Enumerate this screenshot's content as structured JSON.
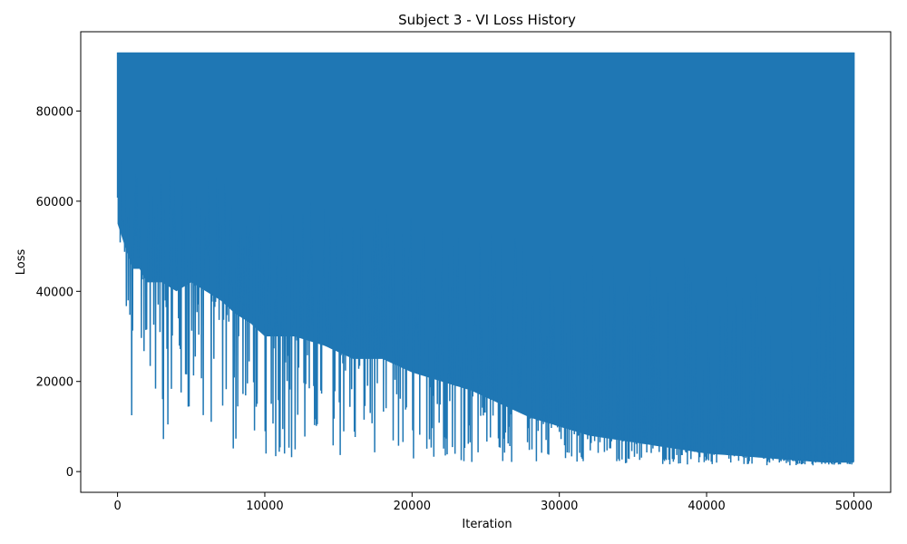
{
  "chart_data": {
    "type": "line",
    "title": "Subject 3 - VI Loss History",
    "xlabel": "Iteration",
    "ylabel": "Loss",
    "xlim": [
      -2500,
      52500
    ],
    "ylim": [
      -4600,
      97600
    ],
    "x_ticks": [
      0,
      10000,
      20000,
      30000,
      40000,
      50000
    ],
    "x_tick_labels": [
      "0",
      "10000",
      "20000",
      "30000",
      "40000",
      "50000"
    ],
    "y_ticks": [
      0,
      20000,
      40000,
      60000,
      80000
    ],
    "y_tick_labels": [
      "0",
      "20000",
      "40000",
      "60000",
      "80000"
    ],
    "grid": false,
    "legend": "none",
    "series": [
      {
        "color": "#1f77b4",
        "upper_envelope": 93000,
        "x": [
          0,
          500,
          1000,
          1500,
          2000,
          3000,
          4000,
          5000,
          6000,
          7000,
          8000,
          9000,
          10000,
          12000,
          14000,
          16000,
          18000,
          20000,
          22000,
          24000,
          26000,
          28000,
          30000,
          32000,
          34000,
          36000,
          38000,
          40000,
          42000,
          44000,
          46000,
          48000,
          50000
        ],
        "y_low": [
          14800,
          41500,
          5500,
          5000,
          23500,
          3000,
          11500,
          13500,
          5200,
          8500,
          3500,
          10000,
          2500,
          2800,
          2600,
          2500,
          1500,
          2000,
          1800,
          2000,
          1800,
          2200,
          2000,
          2000,
          1800,
          1600,
          1600,
          1500,
          1500,
          1400,
          1400,
          1300,
          1600
        ],
        "y_lower_band": [
          55000,
          50000,
          45000,
          45000,
          42000,
          42000,
          40000,
          42000,
          40000,
          38000,
          35000,
          33000,
          30000,
          30000,
          28000,
          25000,
          25000,
          22000,
          20000,
          18000,
          15000,
          12000,
          10000,
          8000,
          7000,
          6000,
          5000,
          4000,
          3500,
          3000,
          2500,
          2000,
          2000
        ],
        "end_value": 65000
      }
    ]
  }
}
